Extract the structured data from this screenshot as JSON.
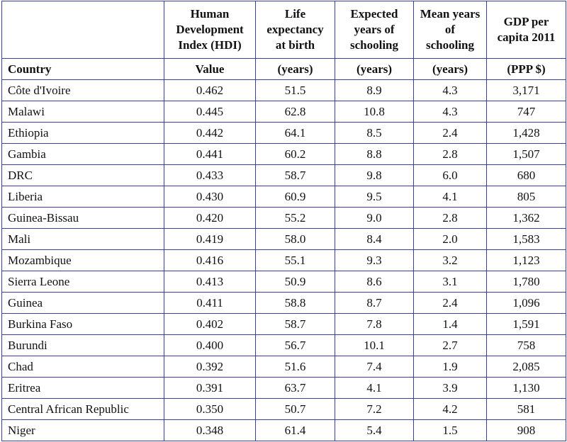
{
  "table": {
    "headers": [
      "",
      "Human Development Index (HDI)",
      "Life expectancy at birth",
      "Expected years of schooling",
      "Mean years of schooling",
      "GDP per capita 2011"
    ],
    "units": [
      "Country",
      "Value",
      "(years)",
      "(years)",
      "(years)",
      "(PPP $)"
    ],
    "rows": [
      [
        "Côte d'Ivoire",
        "0.462",
        "51.5",
        "8.9",
        "4.3",
        "3,171"
      ],
      [
        "Malawi",
        "0.445",
        "62.8",
        "10.8",
        "4.3",
        "747"
      ],
      [
        "Ethiopia",
        "0.442",
        "64.1",
        "8.5",
        "2.4",
        "1,428"
      ],
      [
        "Gambia",
        "0.441",
        "60.2",
        "8.8",
        "2.8",
        "1,507"
      ],
      [
        "DRC",
        "0.433",
        "58.7",
        "9.8",
        "6.0",
        "680"
      ],
      [
        "Liberia",
        "0.430",
        "60.9",
        "9.5",
        "4.1",
        "805"
      ],
      [
        "Guinea-Bissau",
        "0.420",
        "55.2",
        "9.0",
        "2.8",
        "1,362"
      ],
      [
        "Mali",
        "0.419",
        "58.0",
        "8.4",
        "2.0",
        "1,583"
      ],
      [
        "Mozambique",
        "0.416",
        "55.1",
        "9.3",
        "3.2",
        "1,123"
      ],
      [
        "Sierra Leone",
        "0.413",
        "50.9",
        "8.6",
        "3.1",
        "1,780"
      ],
      [
        "Guinea",
        "0.411",
        "58.8",
        "8.7",
        "2.4",
        "1,096"
      ],
      [
        "Burkina Faso",
        "0.402",
        "58.7",
        "7.8",
        "1.4",
        "1,591"
      ],
      [
        "Burundi",
        "0.400",
        "56.7",
        "10.1",
        "2.7",
        "758"
      ],
      [
        "Chad",
        "0.392",
        "51.6",
        "7.4",
        "1.9",
        "2,085"
      ],
      [
        "Eritrea",
        "0.391",
        "63.7",
        "4.1",
        "3.9",
        "1,130"
      ],
      [
        "Central African Republic",
        "0.350",
        "50.7",
        "7.2",
        "4.2",
        "581"
      ],
      [
        "Niger",
        "0.348",
        "61.4",
        "5.4",
        "1.5",
        "908"
      ]
    ]
  },
  "colors": {
    "border": "#3b3f9c",
    "text": "#111111"
  }
}
